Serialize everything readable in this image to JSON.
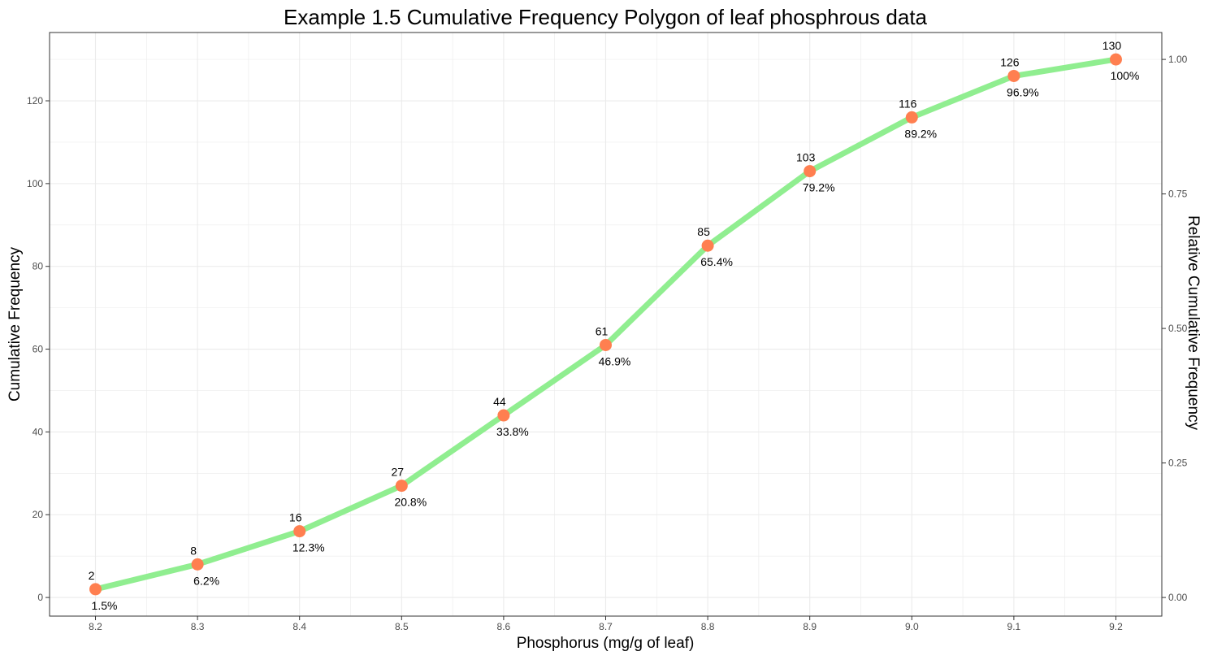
{
  "chart_data": {
    "type": "line",
    "title": "Example 1.5 Cumulative Frequency Polygon of leaf phosphrous data",
    "xlabel": "Phosphorus (mg/g of leaf)",
    "ylabel": "Cumulative Frequency",
    "y2label": "Relative Cumulative Frequency",
    "x": [
      8.2,
      8.3,
      8.4,
      8.5,
      8.6,
      8.7,
      8.8,
      8.9,
      9.0,
      9.1,
      9.2
    ],
    "x_tick_labels": [
      "8.2",
      "8.3",
      "8.4",
      "8.5",
      "8.6",
      "8.7",
      "8.8",
      "8.9",
      "9.0",
      "9.1",
      "9.2"
    ],
    "series": [
      {
        "values": [
          2,
          8,
          16,
          27,
          44,
          61,
          85,
          103,
          116,
          126,
          130
        ],
        "point_labels": [
          "2",
          "8",
          "16",
          "27",
          "44",
          "61",
          "85",
          "103",
          "116",
          "126",
          "130"
        ],
        "relative_labels": [
          "1.5%",
          "6.2%",
          "12.3%",
          "20.8%",
          "33.8%",
          "46.9%",
          "65.4%",
          "79.2%",
          "89.2%",
          "96.9%",
          "100%"
        ]
      }
    ],
    "xlim": [
      8.155,
      9.245
    ],
    "ylim": [
      -4.5,
      136.5
    ],
    "y_ticks": [
      0,
      20,
      40,
      60,
      80,
      100,
      120
    ],
    "y_tick_labels": [
      "0",
      "20",
      "40",
      "60",
      "80",
      "100",
      "120"
    ],
    "y2_ticks": [
      0,
      0.25,
      0.5,
      0.75,
      1.0
    ],
    "y2_tick_labels": [
      "0.00",
      "0.25",
      "0.50",
      "0.75",
      "1.00"
    ],
    "y2_scale_total": 130,
    "grid": true,
    "colors": {
      "line": "#90EE90",
      "point": "#FF7F50",
      "grid": "#EBEBEB",
      "axis_text": "#4D4D4D"
    }
  }
}
